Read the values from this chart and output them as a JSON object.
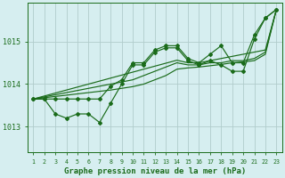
{
  "title": "Graphe pression niveau de la mer (hPa)",
  "background_color": "#d6eef0",
  "grid_color": "#b0cccc",
  "line_color": "#1a6b1a",
  "x_ticks": [
    1,
    2,
    3,
    4,
    5,
    6,
    7,
    8,
    9,
    10,
    11,
    12,
    13,
    14,
    15,
    16,
    17,
    18,
    19,
    20,
    21,
    22,
    23
  ],
  "y_ticks": [
    1013,
    1014,
    1015
  ],
  "ylim": [
    1012.4,
    1015.9
  ],
  "xlim": [
    0.5,
    23.5
  ],
  "series": [
    {
      "data": [
        1013.65,
        1013.65,
        1013.3,
        1013.15,
        1013.3,
        1013.3,
        1013.05,
        1013.55,
        1014.0,
        1014.45,
        1014.45,
        1014.75,
        1014.85,
        1014.85,
        1014.55,
        1014.45,
        1014.55,
        1014.45,
        1014.3,
        1014.3,
        1015.05,
        1015.55,
        1015.75
      ],
      "marker": "D",
      "markersize": 2.2,
      "linewidth": 0.9
    },
    {
      "data": [
        1013.65,
        1013.65,
        1013.65,
        1013.65,
        1013.65,
        1013.65,
        1013.65,
        1013.75,
        1013.85,
        1013.95,
        1014.05,
        1014.15,
        1014.25,
        1014.35,
        1014.45,
        1014.5,
        1014.55,
        1014.6,
        1014.65,
        1014.7,
        1014.75,
        1014.8,
        1015.75
      ],
      "marker": null,
      "markersize": 0,
      "linewidth": 0.9
    },
    {
      "data": [
        1013.65,
        1013.65,
        1013.65,
        1013.65,
        1013.65,
        1013.65,
        1013.65,
        1013.95,
        1014.05,
        1014.15,
        1014.25,
        1014.45,
        1014.65,
        1014.65,
        1014.45,
        1014.45,
        1014.65,
        1014.85,
        1014.45,
        1014.45,
        1015.15,
        1015.55,
        1015.75
      ],
      "marker": "D",
      "markersize": 2.2,
      "linewidth": 0.9
    },
    {
      "data": [
        1013.65,
        1013.65,
        1013.65,
        1013.65,
        1013.65,
        1013.65,
        1013.65,
        1013.75,
        1013.9,
        1014.1,
        1014.2,
        1014.35,
        1014.5,
        1014.6,
        1014.45,
        1014.45,
        1014.5,
        1014.55,
        1014.6,
        1014.6,
        1014.7,
        1014.8,
        1015.75
      ],
      "marker": null,
      "markersize": 0,
      "linewidth": 0.9
    },
    {
      "data": [
        1013.65,
        1013.65,
        1013.65,
        1013.65,
        1013.65,
        1013.65,
        1013.65,
        1013.75,
        1013.9,
        1014.05,
        1014.15,
        1014.3,
        1014.45,
        1014.55,
        1014.4,
        1014.4,
        1014.45,
        1014.5,
        1014.55,
        1014.55,
        1014.65,
        1014.75,
        1015.75
      ],
      "marker": null,
      "markersize": 0,
      "linewidth": 0.9
    }
  ]
}
